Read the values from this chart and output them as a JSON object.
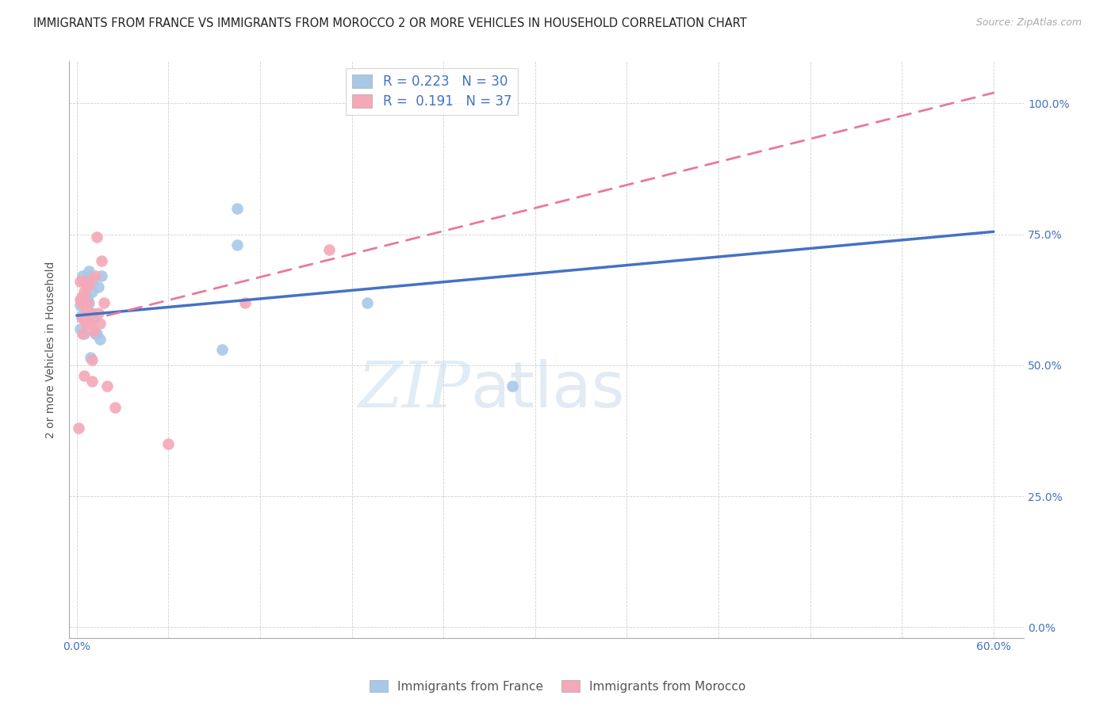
{
  "title": "IMMIGRANTS FROM FRANCE VS IMMIGRANTS FROM MOROCCO 2 OR MORE VEHICLES IN HOUSEHOLD CORRELATION CHART",
  "source": "Source: ZipAtlas.com",
  "ylabel": "2 or more Vehicles in Household",
  "xlabel_ticks": [
    "0.0%",
    "",
    "",
    "",
    "",
    "",
    "",
    "",
    "",
    "60.0%"
  ],
  "xlabel_vals": [
    0.0,
    0.6
  ],
  "ylabel_ticks": [
    "100.0%",
    "75.0%",
    "50.0%",
    "25.0%",
    "0.0%"
  ],
  "ylabel_right_vals": [
    1.0,
    0.75,
    0.5,
    0.25,
    0.0
  ],
  "xlim": [
    -0.005,
    0.62
  ],
  "ylim": [
    -0.02,
    1.08
  ],
  "france_R": 0.223,
  "france_N": 30,
  "morocco_R": 0.191,
  "morocco_N": 37,
  "france_color": "#a8c8e8",
  "morocco_color": "#f4a8b8",
  "france_line_color": "#4472c4",
  "morocco_line_color": "#e878a0",
  "watermark_zip": "ZIP",
  "watermark_atlas": "atlas",
  "france_line_x": [
    0.0,
    0.6
  ],
  "france_line_y": [
    0.595,
    0.755
  ],
  "morocco_line_x": [
    0.02,
    0.6
  ],
  "morocco_line_y": [
    0.595,
    1.02
  ],
  "france_x": [
    0.002,
    0.002,
    0.003,
    0.003,
    0.004,
    0.004,
    0.005,
    0.005,
    0.006,
    0.006,
    0.006,
    0.007,
    0.007,
    0.008,
    0.008,
    0.009,
    0.009,
    0.01,
    0.01,
    0.011,
    0.012,
    0.013,
    0.014,
    0.015,
    0.016,
    0.095,
    0.105,
    0.105,
    0.19,
    0.285
  ],
  "france_y": [
    0.615,
    0.57,
    0.595,
    0.63,
    0.63,
    0.67,
    0.62,
    0.56,
    0.665,
    0.59,
    0.62,
    0.625,
    0.63,
    0.62,
    0.68,
    0.515,
    0.67,
    0.66,
    0.64,
    0.59,
    0.56,
    0.56,
    0.65,
    0.55,
    0.67,
    0.53,
    0.8,
    0.73,
    0.62,
    0.46
  ],
  "morocco_x": [
    0.001,
    0.002,
    0.002,
    0.003,
    0.003,
    0.003,
    0.004,
    0.004,
    0.004,
    0.005,
    0.005,
    0.005,
    0.006,
    0.006,
    0.006,
    0.007,
    0.007,
    0.008,
    0.008,
    0.008,
    0.009,
    0.009,
    0.01,
    0.01,
    0.01,
    0.011,
    0.012,
    0.013,
    0.014,
    0.015,
    0.016,
    0.018,
    0.02,
    0.025,
    0.06,
    0.11,
    0.165
  ],
  "morocco_y": [
    0.38,
    0.625,
    0.66,
    0.63,
    0.59,
    0.62,
    0.62,
    0.56,
    0.625,
    0.64,
    0.66,
    0.48,
    0.62,
    0.58,
    0.61,
    0.62,
    0.65,
    0.58,
    0.655,
    0.66,
    0.58,
    0.6,
    0.47,
    0.51,
    0.6,
    0.565,
    0.67,
    0.745,
    0.6,
    0.58,
    0.7,
    0.62,
    0.46,
    0.42,
    0.35,
    0.62,
    0.72
  ]
}
